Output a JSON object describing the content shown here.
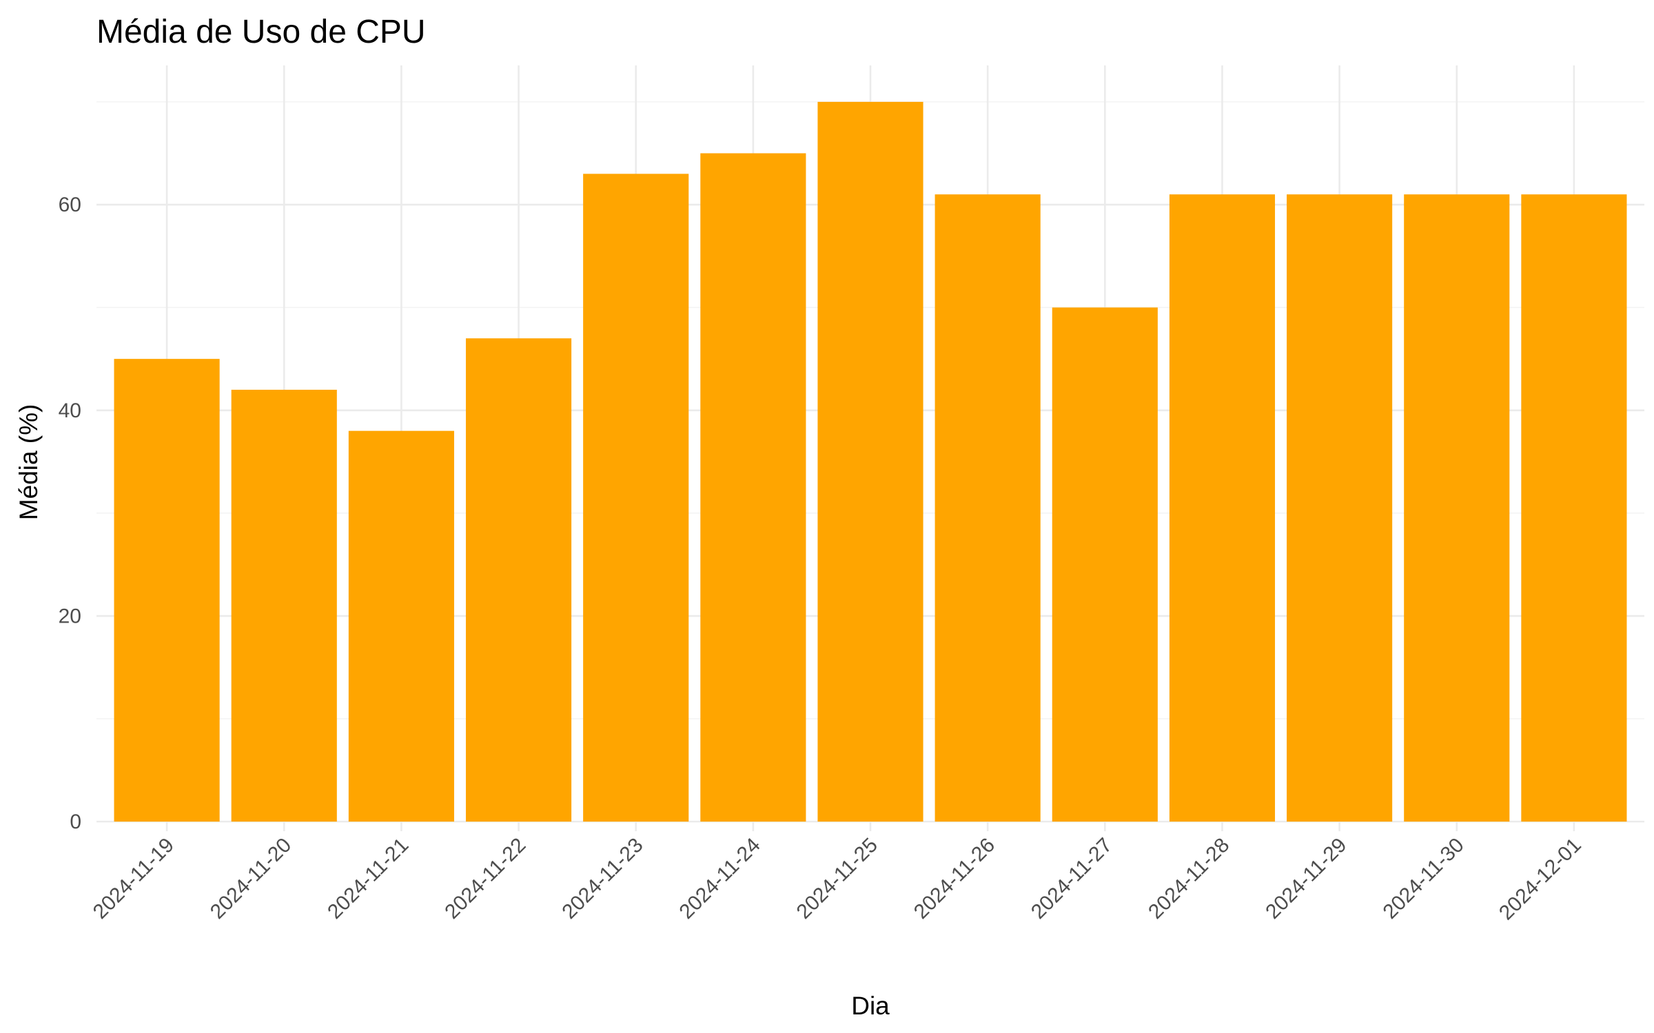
{
  "chart_data": {
    "type": "bar",
    "title": "Média de Uso de CPU",
    "xlabel": "Dia",
    "ylabel": "Média (%)",
    "categories": [
      "2024-11-19",
      "2024-11-20",
      "2024-11-21",
      "2024-11-22",
      "2024-11-23",
      "2024-11-24",
      "2024-11-25",
      "2024-11-26",
      "2024-11-27",
      "2024-11-28",
      "2024-11-29",
      "2024-11-30",
      "2024-12-01"
    ],
    "values": [
      45,
      42,
      38,
      47,
      63,
      65,
      70,
      61,
      50,
      61,
      61,
      61,
      61
    ],
    "ylim": [
      0,
      70
    ],
    "yticks": [
      0,
      20,
      40,
      60
    ],
    "grid": true,
    "bar_color": "#FFA500"
  }
}
